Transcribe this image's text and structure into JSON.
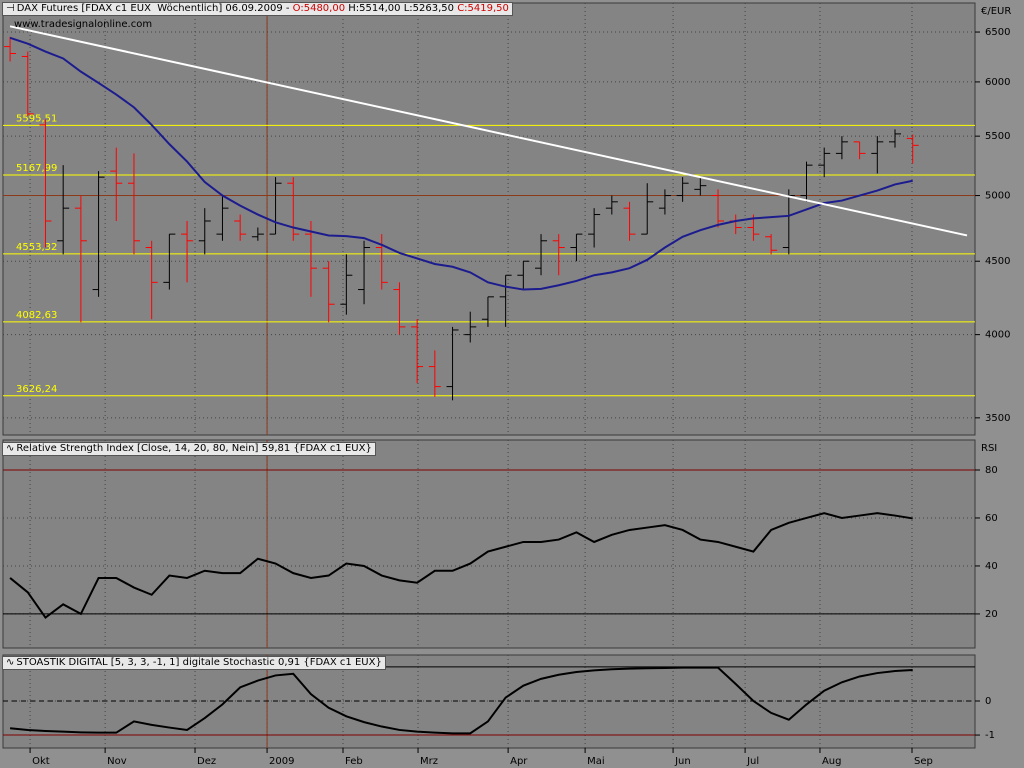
{
  "chart_data": [
    {
      "type": "ohlc",
      "title": "DAX Futures [FDAX c1 EUX  Wöchentlich] 06.09.2009 -",
      "open_label": "O:5480,00",
      "high_label": "H:5514,00",
      "low_label": "L:5263,50",
      "close_label": "C:5419,50",
      "watermark": "www.tradesignalonline.com",
      "axis_unit": "€/EUR",
      "log_scale": true,
      "grid": true,
      "ylim": [
        3405,
        6810
      ],
      "yticks": [
        3500,
        4000,
        4500,
        5000,
        5500,
        6000,
        6500
      ],
      "xlim": [
        -0.4,
        54.52
      ],
      "xticks": [
        {
          "value": 1.13,
          "label": "Okt"
        },
        {
          "value": 5.37,
          "label": "Nov"
        },
        {
          "value": 10.45,
          "label": "Dez"
        },
        {
          "value": 14.52,
          "label": "2009"
        },
        {
          "value": 18.81,
          "label": "Feb"
        },
        {
          "value": 23.05,
          "label": "Mrz"
        },
        {
          "value": 28.14,
          "label": "Apr"
        },
        {
          "value": 32.49,
          "label": "Mai"
        },
        {
          "value": 37.46,
          "label": "Jun"
        },
        {
          "value": 41.53,
          "label": "Jul"
        },
        {
          "value": 45.76,
          "label": "Aug"
        },
        {
          "value": 50.96,
          "label": "Sep"
        }
      ],
      "up_color": "#000000",
      "down_color": "#ff0000",
      "open": [
        6350,
        6250,
        5600,
        4650,
        4900,
        4300,
        5200,
        5100,
        4600,
        4350,
        4700,
        4650,
        4700,
        4800,
        4680,
        4700,
        5100,
        4700,
        4450,
        4200,
        4300,
        4600,
        4300,
        4050,
        3800,
        3680,
        4000,
        4100,
        4250,
        4400,
        4450,
        4650,
        4600,
        4700,
        4900,
        4900,
        4700,
        4900,
        5000,
        5050,
        5000,
        4800,
        4750,
        4680,
        4600,
        5000,
        5250,
        5350,
        5450,
        5350,
        5450,
        5480
      ],
      "high": [
        6450,
        6300,
        5650,
        5250,
        5000,
        5200,
        5400,
        5350,
        4650,
        4700,
        4800,
        4900,
        5000,
        4850,
        4750,
        5150,
        5150,
        4800,
        4500,
        4550,
        4650,
        4700,
        4350,
        4100,
        3900,
        4050,
        4150,
        4250,
        4400,
        4500,
        4700,
        4700,
        4700,
        4900,
        5000,
        4950,
        5100,
        5050,
        5150,
        5150,
        5050,
        4850,
        4850,
        4700,
        5050,
        5280,
        5400,
        5500,
        5450,
        5500,
        5560,
        5514
      ],
      "low": [
        6200,
        5680,
        4600,
        4550,
        4080,
        4250,
        4800,
        4550,
        4100,
        4300,
        4350,
        4550,
        4650,
        4650,
        4650,
        4700,
        4650,
        4250,
        4080,
        4130,
        4200,
        4300,
        4000,
        3700,
        3620,
        3600,
        3950,
        4050,
        4050,
        4300,
        4400,
        4400,
        4500,
        4600,
        4850,
        4650,
        4700,
        4850,
        4950,
        5000,
        4750,
        4700,
        4650,
        4550,
        4550,
        4950,
        5150,
        5300,
        5300,
        5180,
        5400,
        5263.5
      ],
      "close": [
        6280,
        5700,
        4800,
        4900,
        4650,
        5150,
        5100,
        4650,
        4350,
        4700,
        4650,
        4800,
        4900,
        4700,
        4700,
        5100,
        4700,
        4450,
        4200,
        4400,
        4600,
        4350,
        4050,
        3800,
        3680,
        4030,
        4050,
        4250,
        4400,
        4500,
        4650,
        4600,
        4700,
        4850,
        4950,
        4700,
        4950,
        5000,
        5100,
        5080,
        4800,
        4750,
        4700,
        4580,
        5000,
        5250,
        5350,
        5450,
        5350,
        5450,
        5520,
        5419.5
      ],
      "moving_average": {
        "color": "#1c1c8e",
        "values": [
          6440,
          6380,
          6300,
          6230,
          6100,
          5990,
          5880,
          5760,
          5600,
          5430,
          5280,
          5110,
          5000,
          4920,
          4850,
          4790,
          4750,
          4720,
          4690,
          4685,
          4670,
          4620,
          4560,
          4520,
          4480,
          4460,
          4420,
          4350,
          4320,
          4300,
          4305,
          4330,
          4360,
          4400,
          4420,
          4450,
          4510,
          4600,
          4680,
          4730,
          4770,
          4800,
          4820,
          4830,
          4840,
          4890,
          4940,
          4960,
          5000,
          5040,
          5090,
          5120
        ]
      },
      "trendline": {
        "color": "#ffffff",
        "x": [
          0,
          54.07
        ],
        "values": [
          6560,
          4690
        ]
      },
      "levels": {
        "color": "#ffff00",
        "lines": [
          {
            "value": 5595.51,
            "label": "5595,51"
          },
          {
            "value": 5167.99,
            "label": "5167,99"
          },
          {
            "value": 4553.32,
            "label": "4553,32"
          },
          {
            "value": 4082.63,
            "label": "4082,63"
          },
          {
            "value": 3626.24,
            "label": "3626,24"
          }
        ]
      },
      "hlines": [
        {
          "value": 5000,
          "color": "#8b3a1a"
        }
      ],
      "vlines": [
        {
          "value": 14.52,
          "color": "#8b3a1a"
        }
      ]
    },
    {
      "type": "line",
      "title": "Relative Strength Index [Close, 14, 20, 80, Nein] 59,81 {FDAX c1 EUX}",
      "axis_unit": "RSI",
      "color": "#000000",
      "grid": true,
      "ylim": [
        5.8,
        92.5
      ],
      "yticks": [
        20,
        40,
        60,
        80
      ],
      "values": [
        35,
        29,
        18.5,
        24,
        20,
        35,
        35,
        31,
        28,
        36,
        35,
        38,
        37,
        37,
        43,
        41,
        37,
        35,
        36,
        41,
        40,
        36,
        34,
        33,
        38,
        38,
        41,
        46,
        48,
        50,
        50,
        51,
        54,
        50,
        53,
        55,
        56,
        57,
        55,
        51,
        50,
        48,
        46,
        55,
        58,
        60,
        62,
        60,
        61,
        62,
        61,
        59.81
      ],
      "hlines": [
        {
          "value": 80,
          "color": "#800000"
        },
        {
          "value": 20,
          "color": "#000000"
        }
      ]
    },
    {
      "type": "line",
      "title": "STOASTIK DIGITAL [5, 3, 3, -1, 1] digitale Stochastic 0,91 {FDAX c1 EUX}",
      "color": "#000000",
      "grid": true,
      "ylim": [
        -1.38,
        1.35
      ],
      "yticks": [
        -1,
        0
      ],
      "values": [
        -0.8,
        -0.85,
        -0.88,
        -0.9,
        -0.92,
        -0.93,
        -0.93,
        -0.6,
        -0.7,
        -0.78,
        -0.85,
        -0.5,
        -0.1,
        0.4,
        0.6,
        0.75,
        0.8,
        0.2,
        -0.2,
        -0.45,
        -0.62,
        -0.75,
        -0.85,
        -0.9,
        -0.93,
        -0.95,
        -0.95,
        -0.6,
        0.1,
        0.45,
        0.65,
        0.77,
        0.85,
        0.9,
        0.93,
        0.95,
        0.96,
        0.97,
        0.98,
        0.98,
        0.98,
        0.5,
        0.0,
        -0.35,
        -0.55,
        -0.1,
        0.3,
        0.55,
        0.72,
        0.82,
        0.88,
        0.91
      ],
      "hlines": [
        {
          "value": 1,
          "color": "#000000"
        },
        {
          "value": 0,
          "color": "#000000",
          "dash": true
        },
        {
          "value": -1,
          "color": "#800000"
        }
      ]
    }
  ]
}
